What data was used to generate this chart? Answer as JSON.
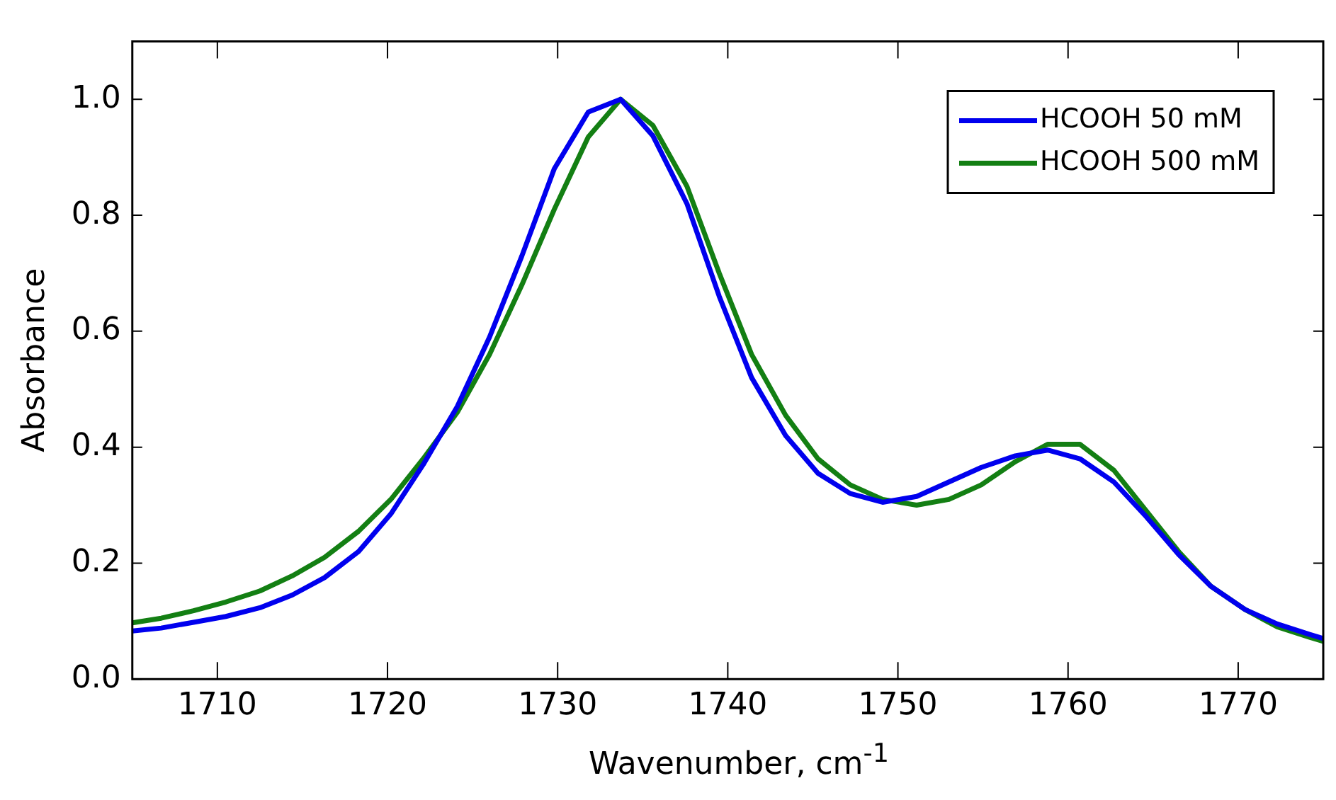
{
  "chart_data": {
    "type": "line",
    "xlabel": "Wavenumber, cm$^{-1}$",
    "ylabel": "Absorbance",
    "x": [
      1705,
      1706.7,
      1708.6,
      1710.5,
      1712.5,
      1714.4,
      1716.3,
      1718.3,
      1720.2,
      1722.1,
      1724.1,
      1726.0,
      1727.9,
      1729.8,
      1731.8,
      1733.7,
      1735.6,
      1737.6,
      1739.5,
      1741.4,
      1743.4,
      1745.3,
      1747.2,
      1749.1,
      1751.1,
      1753.0,
      1754.9,
      1756.9,
      1758.8,
      1760.7,
      1762.7,
      1764.6,
      1766.5,
      1768.4,
      1770.4,
      1772.3,
      1774.2,
      1775
    ],
    "series": [
      {
        "name": "HCOOH 50 mM",
        "color": "#0000ee",
        "values": [
          0.083,
          0.088,
          0.098,
          0.108,
          0.123,
          0.145,
          0.175,
          0.22,
          0.285,
          0.37,
          0.47,
          0.59,
          0.73,
          0.88,
          0.978,
          1.0,
          0.937,
          0.82,
          0.66,
          0.52,
          0.42,
          0.355,
          0.32,
          0.305,
          0.315,
          0.34,
          0.365,
          0.385,
          0.395,
          0.38,
          0.34,
          0.28,
          0.215,
          0.16,
          0.12,
          0.095,
          0.077,
          0.07
        ]
      },
      {
        "name": "HCOOH 500 mM",
        "color": "#137f13",
        "values": [
          0.097,
          0.105,
          0.118,
          0.133,
          0.152,
          0.178,
          0.21,
          0.255,
          0.31,
          0.38,
          0.46,
          0.56,
          0.68,
          0.81,
          0.935,
          1.0,
          0.955,
          0.85,
          0.7,
          0.56,
          0.455,
          0.38,
          0.335,
          0.31,
          0.3,
          0.31,
          0.335,
          0.375,
          0.405,
          0.405,
          0.36,
          0.29,
          0.22,
          0.16,
          0.12,
          0.09,
          0.072,
          0.065
        ]
      }
    ],
    "xlim": [
      1705,
      1775
    ],
    "xticks": [
      1710,
      1720,
      1730,
      1740,
      1750,
      1760,
      1770
    ],
    "ylim": [
      0,
      1.1
    ],
    "yticks": [
      {
        "value": 0,
        "label": "0.0"
      },
      0.2,
      0.4,
      0.6,
      0.8,
      {
        "value": 1,
        "label": "1.0"
      }
    ],
    "legend": "top right",
    "grid": false,
    "marker": "none",
    "line_style": "solid"
  }
}
